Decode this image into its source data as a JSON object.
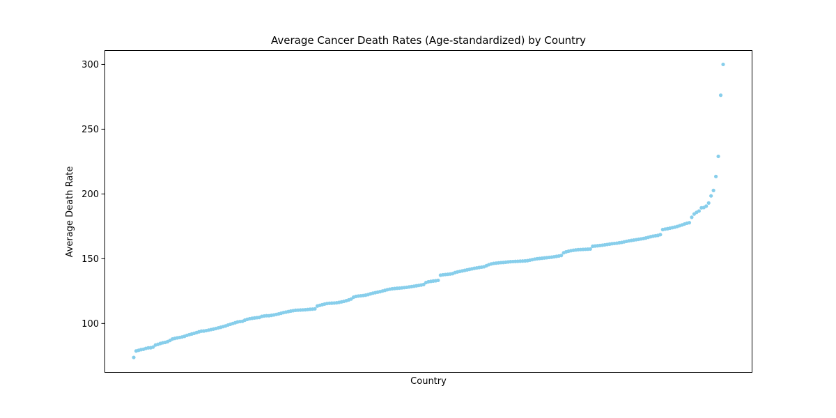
{
  "chart_data": {
    "type": "scatter",
    "title": "Average Cancer Death Rates (Age-standardized) by Country",
    "xlabel": "Country",
    "ylabel": "Average Death Rate",
    "ylim": [
      62,
      311
    ],
    "yticks": [
      100,
      150,
      200,
      250,
      300
    ],
    "xticks_visible": false,
    "grid": false,
    "marker_color": "#87ceeb",
    "axis_color": "#000000",
    "series": [
      {
        "values": [
          73.8,
          78.8,
          79.3,
          79.8,
          80.1,
          80.8,
          81.2,
          81.3,
          81.8,
          83.4,
          83.9,
          84.6,
          85.1,
          85.4,
          86.0,
          86.9,
          88.0,
          88.5,
          88.9,
          89.2,
          89.6,
          90.1,
          90.8,
          91.4,
          91.9,
          92.4,
          93.0,
          93.6,
          94.1,
          94.2,
          94.5,
          94.9,
          95.3,
          95.7,
          96.1,
          96.6,
          97.1,
          97.6,
          98.1,
          98.8,
          99.4,
          100.0,
          100.6,
          101.2,
          101.5,
          101.7,
          102.6,
          103.2,
          103.7,
          104.0,
          104.3,
          104.5,
          104.7,
          105.5,
          105.8,
          106.0,
          106.0,
          106.3,
          106.6,
          107.0,
          107.4,
          107.9,
          108.4,
          108.8,
          109.2,
          109.6,
          109.9,
          110.2,
          110.3,
          110.4,
          110.5,
          110.6,
          110.8,
          111.0,
          111.1,
          111.3,
          113.5,
          114.0,
          114.5,
          115.0,
          115.4,
          115.6,
          115.7,
          115.8,
          116.0,
          116.3,
          116.7,
          117.1,
          117.6,
          118.2,
          118.9,
          120.3,
          120.9,
          121.2,
          121.4,
          121.6,
          121.9,
          122.3,
          122.9,
          123.4,
          123.8,
          124.2,
          124.6,
          125.1,
          125.6,
          126.1,
          126.5,
          126.8,
          127.0,
          127.2,
          127.3,
          127.5,
          127.7,
          127.9,
          128.2,
          128.5,
          128.8,
          129.1,
          129.4,
          129.7,
          130.1,
          131.6,
          132.2,
          132.5,
          132.8,
          133.0,
          133.3,
          137.3,
          137.6,
          137.8,
          138.0,
          138.2,
          138.5,
          139.3,
          139.8,
          140.2,
          140.6,
          141.0,
          141.4,
          141.8,
          142.2,
          142.6,
          142.9,
          143.2,
          143.5,
          143.8,
          144.6,
          145.4,
          146.0,
          146.4,
          146.6,
          146.8,
          147.0,
          147.1,
          147.3,
          147.5,
          147.7,
          147.8,
          147.9,
          148.0,
          148.1,
          148.2,
          148.3,
          148.5,
          148.9,
          149.3,
          149.7,
          150.0,
          150.2,
          150.4,
          150.6,
          150.8,
          151.0,
          151.2,
          151.5,
          151.8,
          152.1,
          152.5,
          154.6,
          155.3,
          155.8,
          156.2,
          156.5,
          156.8,
          157.0,
          157.1,
          157.2,
          157.3,
          157.4,
          157.5,
          159.6,
          159.8,
          160.0,
          160.2,
          160.4,
          160.7,
          161.0,
          161.3,
          161.6,
          161.8,
          162.0,
          162.3,
          162.6,
          163.0,
          163.4,
          163.8,
          164.1,
          164.4,
          164.7,
          165.0,
          165.3,
          165.6,
          166.0,
          166.5,
          167.0,
          167.4,
          167.7,
          168.0,
          168.6,
          172.5,
          172.9,
          173.2,
          173.6,
          174.0,
          174.4,
          174.9,
          175.5,
          176.1,
          176.8,
          177.4,
          177.8,
          182.0,
          184.5,
          185.8,
          186.8,
          189.3,
          189.5,
          190.6,
          193.0,
          198.5,
          202.7,
          213.5,
          229.0,
          276.2,
          300.0
        ]
      }
    ]
  }
}
